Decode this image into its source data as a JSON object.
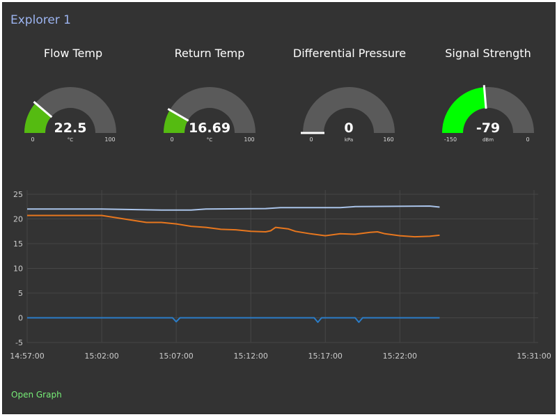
{
  "title": "Explorer 1",
  "gauges": [
    {
      "label": "Flow Temp",
      "value": 22.5,
      "display": "22.5",
      "unit": "°C",
      "min": 0,
      "max": 100,
      "min_label": "0",
      "max_label": "100",
      "color": "#55bb11"
    },
    {
      "label": "Return Temp",
      "value": 16.69,
      "display": "16.69",
      "unit": "°C",
      "min": 0,
      "max": 100,
      "min_label": "0",
      "max_label": "100",
      "color": "#55bb11"
    },
    {
      "label": "Differential Pressure",
      "value": 0,
      "display": "0",
      "unit": "kPa",
      "min": 0,
      "max": 160,
      "min_label": "0",
      "max_label": "160",
      "color": "#55bb11"
    },
    {
      "label": "Signal Strength",
      "value": -79,
      "display": "-79",
      "unit": "dBm",
      "min": -150,
      "max": 0,
      "min_label": "-150",
      "max_label": "0",
      "color": "#00ff00"
    }
  ],
  "open_graph_label": "Open Graph",
  "chart_data": {
    "type": "line",
    "x_label_ticks": [
      "14:57:00",
      "15:02:00",
      "15:07:00",
      "15:12:00",
      "15:17:00",
      "15:22:00",
      "15:31:00"
    ],
    "y_ticks": [
      25,
      20,
      15,
      10,
      5,
      0,
      -5
    ],
    "ylim": [
      -5,
      25
    ],
    "xlim": [
      "14:57:00",
      "15:31:00"
    ],
    "grid": true,
    "series": [
      {
        "color": "#aac4ea",
        "points": [
          [
            "14:57:00",
            22.0
          ],
          [
            "15:02:00",
            22.0
          ],
          [
            "15:04:00",
            21.9
          ],
          [
            "15:06:00",
            21.8
          ],
          [
            "15:08:00",
            21.8
          ],
          [
            "15:09:00",
            22.0
          ],
          [
            "15:13:00",
            22.1
          ],
          [
            "15:14:00",
            22.3
          ],
          [
            "15:18:00",
            22.3
          ],
          [
            "15:19:00",
            22.5
          ],
          [
            "15:24:00",
            22.6
          ],
          [
            "15:24:40",
            22.4
          ]
        ]
      },
      {
        "color": "#e8771e",
        "points": [
          [
            "14:57:00",
            20.7
          ],
          [
            "15:02:00",
            20.7
          ],
          [
            "15:05:00",
            19.3
          ],
          [
            "15:06:00",
            19.3
          ],
          [
            "15:07:00",
            19.0
          ],
          [
            "15:08:00",
            18.5
          ],
          [
            "15:09:00",
            18.3
          ],
          [
            "15:10:00",
            17.9
          ],
          [
            "15:11:00",
            17.8
          ],
          [
            "15:12:00",
            17.5
          ],
          [
            "15:13:00",
            17.4
          ],
          [
            "15:13:20",
            17.6
          ],
          [
            "15:13:40",
            18.3
          ],
          [
            "15:14:30",
            18.0
          ],
          [
            "15:15:00",
            17.5
          ],
          [
            "15:16:00",
            17.0
          ],
          [
            "15:17:00",
            16.6
          ],
          [
            "15:18:00",
            17.0
          ],
          [
            "15:19:00",
            16.9
          ],
          [
            "15:20:00",
            17.3
          ],
          [
            "15:20:30",
            17.4
          ],
          [
            "15:21:00",
            17.0
          ],
          [
            "15:22:00",
            16.6
          ],
          [
            "15:23:00",
            16.4
          ],
          [
            "15:24:00",
            16.5
          ],
          [
            "15:24:40",
            16.7
          ]
        ]
      },
      {
        "color": "#2b7dc8",
        "points": [
          [
            "14:57:00",
            0
          ],
          [
            "15:06:45",
            0
          ],
          [
            "15:07:00",
            -0.8
          ],
          [
            "15:07:15",
            0
          ],
          [
            "15:16:15",
            0
          ],
          [
            "15:16:30",
            -0.9
          ],
          [
            "15:16:45",
            0
          ],
          [
            "15:19:00",
            0
          ],
          [
            "15:19:15",
            -0.9
          ],
          [
            "15:19:30",
            0
          ],
          [
            "15:24:40",
            0
          ]
        ]
      }
    ]
  }
}
